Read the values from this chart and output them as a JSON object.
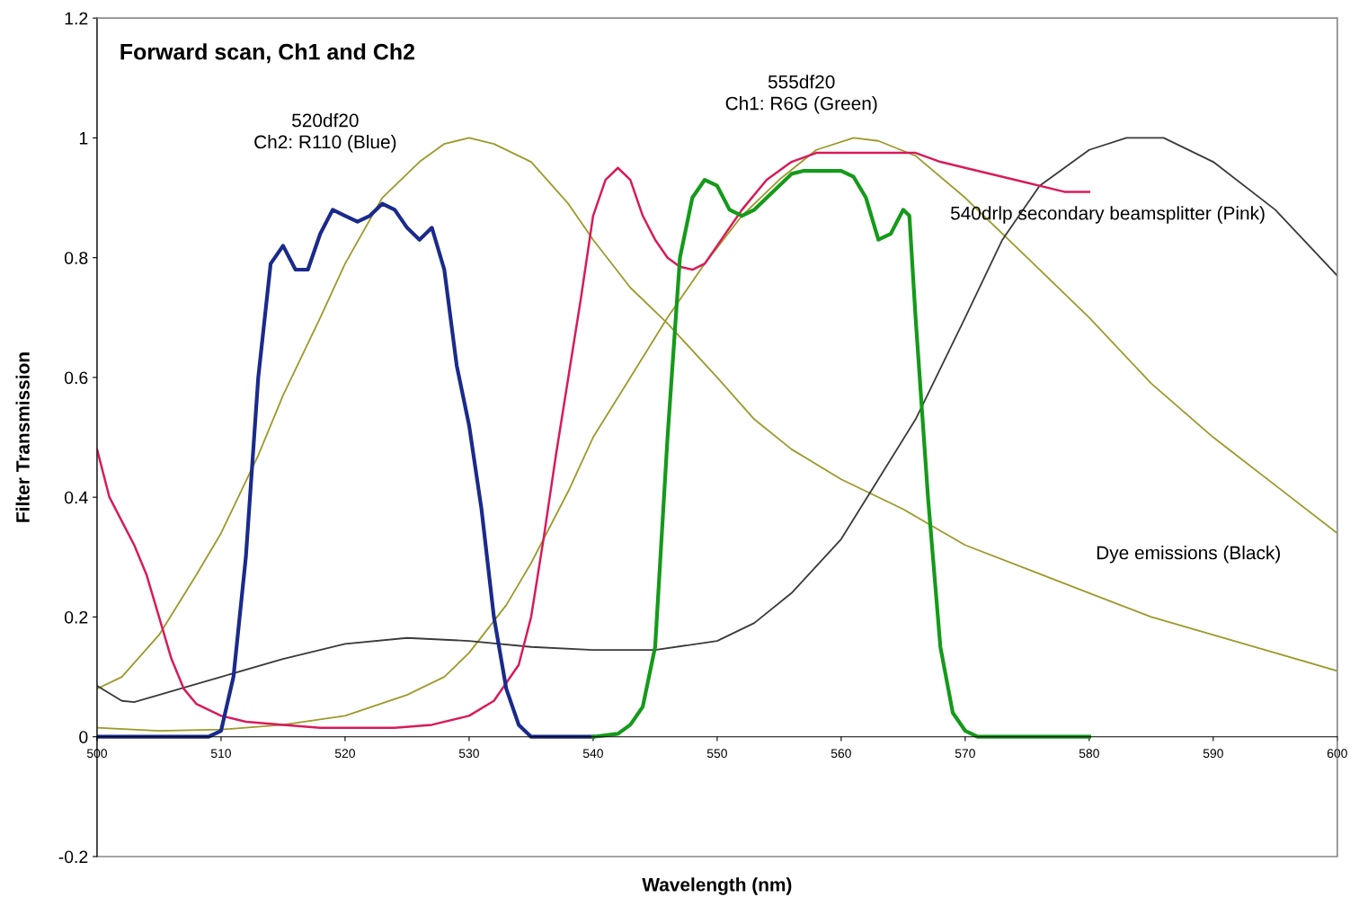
{
  "chart_data": {
    "type": "line",
    "title": "Forward scan, Ch1 and Ch2",
    "xlabel": "Wavelength (nm)",
    "ylabel": "Filter Transmission",
    "xlim": [
      500,
      600
    ],
    "xticks": [
      500,
      510,
      520,
      530,
      540,
      550,
      560,
      570,
      580,
      590,
      600
    ],
    "ylim": [
      -0.2,
      1.2
    ],
    "yticks": [
      -0.2,
      0,
      0.2,
      0.4,
      0.6,
      0.8,
      1,
      1.2
    ],
    "grid": false,
    "marker": "none",
    "line_style": "solid",
    "series": [
      {
        "color": "#9c9a2a",
        "x": [
          500,
          502,
          505,
          508,
          510,
          513,
          515,
          518,
          520,
          523,
          526,
          528,
          530,
          532,
          535,
          538,
          540,
          543,
          546,
          550,
          553,
          556,
          560,
          565,
          570,
          575,
          580,
          585,
          590,
          595,
          600
        ],
        "values": [
          0.08,
          0.1,
          0.17,
          0.27,
          0.34,
          0.47,
          0.57,
          0.7,
          0.79,
          0.9,
          0.96,
          0.99,
          1.0,
          0.99,
          0.96,
          0.89,
          0.83,
          0.75,
          0.69,
          0.6,
          0.53,
          0.48,
          0.43,
          0.38,
          0.32,
          0.28,
          0.24,
          0.2,
          0.17,
          0.14,
          0.11
        ]
      },
      {
        "color": "#9c9a2a",
        "x": [
          500,
          505,
          510,
          515,
          520,
          525,
          528,
          530,
          533,
          535,
          538,
          540,
          543,
          546,
          549,
          552,
          555,
          558,
          561,
          563,
          566,
          570,
          575,
          580,
          585,
          590,
          595,
          600
        ],
        "values": [
          0.015,
          0.01,
          0.012,
          0.02,
          0.035,
          0.07,
          0.1,
          0.14,
          0.22,
          0.29,
          0.41,
          0.5,
          0.6,
          0.7,
          0.79,
          0.87,
          0.93,
          0.98,
          1.0,
          0.995,
          0.97,
          0.9,
          0.8,
          0.7,
          0.59,
          0.5,
          0.42,
          0.34
        ]
      },
      {
        "color": "#3a3a3a",
        "x": [
          500,
          502,
          503,
          505,
          510,
          515,
          520,
          525,
          530,
          535,
          540,
          545,
          550,
          553,
          556,
          560,
          563,
          566,
          570,
          573,
          576,
          580,
          583,
          586,
          590,
          595,
          600
        ],
        "values": [
          0.085,
          0.06,
          0.058,
          0.07,
          0.1,
          0.13,
          0.155,
          0.165,
          0.16,
          0.15,
          0.145,
          0.145,
          0.16,
          0.19,
          0.24,
          0.33,
          0.43,
          0.53,
          0.7,
          0.83,
          0.92,
          0.98,
          1.0,
          1.0,
          0.96,
          0.88,
          0.77
        ]
      },
      {
        "color": "#d81b5a",
        "x": [
          500,
          501,
          502,
          503,
          504,
          505,
          506,
          507,
          508,
          510,
          512,
          515,
          518,
          520,
          524,
          527,
          530,
          532,
          534,
          535,
          536,
          537,
          538,
          539,
          540,
          541,
          542,
          543,
          544,
          545,
          546,
          547,
          548,
          549,
          550,
          552,
          554,
          556,
          558,
          560,
          563,
          566,
          568,
          570,
          574,
          578,
          580
        ],
        "values": [
          0.48,
          0.4,
          0.36,
          0.32,
          0.27,
          0.2,
          0.13,
          0.08,
          0.055,
          0.035,
          0.025,
          0.02,
          0.015,
          0.015,
          0.015,
          0.02,
          0.035,
          0.06,
          0.12,
          0.2,
          0.33,
          0.47,
          0.6,
          0.73,
          0.87,
          0.93,
          0.95,
          0.93,
          0.87,
          0.83,
          0.8,
          0.785,
          0.78,
          0.79,
          0.82,
          0.88,
          0.93,
          0.96,
          0.975,
          0.975,
          0.975,
          0.975,
          0.96,
          0.95,
          0.93,
          0.91,
          0.91
        ]
      },
      {
        "color": "#1a2a8c",
        "x": [
          500,
          509,
          510,
          511,
          512,
          513,
          514,
          515,
          516,
          517,
          518,
          519,
          520,
          521,
          522,
          523,
          524,
          525,
          526,
          527,
          528,
          529,
          530,
          531,
          532,
          533,
          534,
          535,
          540
        ],
        "values": [
          0,
          0,
          0.01,
          0.1,
          0.3,
          0.6,
          0.79,
          0.82,
          0.78,
          0.78,
          0.84,
          0.88,
          0.87,
          0.86,
          0.87,
          0.89,
          0.88,
          0.85,
          0.83,
          0.85,
          0.78,
          0.62,
          0.52,
          0.38,
          0.2,
          0.08,
          0.02,
          0,
          0
        ]
      },
      {
        "color": "#159a1a",
        "x": [
          540,
          542,
          543,
          544,
          545,
          546,
          547,
          548,
          549,
          550,
          551,
          552,
          553,
          554,
          555,
          556,
          557,
          560,
          561,
          562,
          563,
          564,
          565,
          565.5,
          566,
          567,
          568,
          569,
          570,
          571,
          580
        ],
        "values": [
          0,
          0.005,
          0.02,
          0.05,
          0.15,
          0.5,
          0.8,
          0.9,
          0.93,
          0.92,
          0.88,
          0.87,
          0.88,
          0.9,
          0.92,
          0.94,
          0.945,
          0.945,
          0.935,
          0.9,
          0.83,
          0.84,
          0.88,
          0.87,
          0.7,
          0.4,
          0.15,
          0.04,
          0.01,
          0,
          0
        ]
      }
    ],
    "annotations": [
      "520df20\nCh2: R110 (Blue)",
      "555df20\nCh1: R6G (Green)",
      "540drlp secondary beamsplitter (Pink)",
      "Dye emissions (Black)"
    ]
  }
}
